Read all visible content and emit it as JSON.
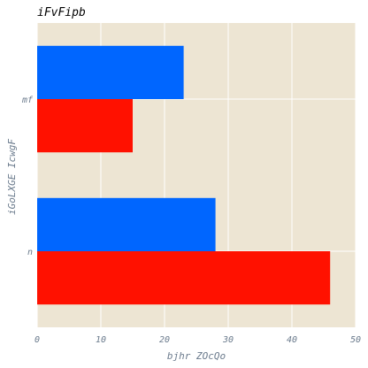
{
  "chart_data": {
    "type": "bar",
    "orientation": "horizontal",
    "title": "iFvFipb",
    "xlabel": "bjhr ZOcQo",
    "ylabel": "iGoLXGE IcwgF",
    "categories": [
      "n",
      "mf"
    ],
    "series": [
      {
        "values": [
          46,
          15
        ],
        "color": "#ff1100"
      },
      {
        "values": [
          28,
          23
        ],
        "color": "#0066ff"
      }
    ],
    "xlim": [
      0,
      50
    ],
    "xticks": [
      0,
      10,
      20,
      30,
      40,
      50
    ],
    "grid": true,
    "background": "#ede5d3",
    "grid_color": "#ffffff"
  }
}
